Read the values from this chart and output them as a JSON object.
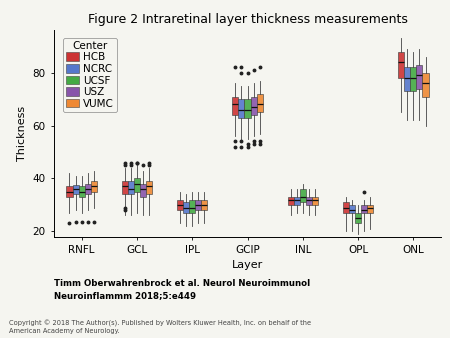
{
  "title": "Figure 2 Intraretinal layer thickness measurements",
  "xlabel": "Layer",
  "ylabel": "Thickness",
  "layers": [
    "RNFL",
    "GCL",
    "IPL",
    "GCIP",
    "INL",
    "OPL",
    "ONL"
  ],
  "centers": [
    "HCB",
    "NCRC",
    "UCSF",
    "USZ",
    "VUMC"
  ],
  "colors": [
    "#cc3333",
    "#5577cc",
    "#44aa44",
    "#8855aa",
    "#ee8833"
  ],
  "legend_title": "Center",
  "footnote1": "Timm Oberwahrenbrock et al. Neurol Neuroimmunol",
  "footnote2": "Neuroinflammm 2018;5:e449",
  "copyright": "Copyright © 2018 The Author(s). Published by Wolters Kluwer Health, Inc. on behalf of the\nAmerican Academy of Neurology.",
  "boxplot_data": {
    "RNFL": {
      "HCB": {
        "q1": 33,
        "median": 35,
        "q3": 37,
        "whislo": 27,
        "whishi": 42,
        "fliers": [
          23
        ]
      },
      "NCRC": {
        "q1": 34,
        "median": 36,
        "q3": 37.5,
        "whislo": 28,
        "whishi": 41,
        "fliers": [
          23.5
        ]
      },
      "UCSF": {
        "q1": 33,
        "median": 35,
        "q3": 37,
        "whislo": 27,
        "whishi": 41,
        "fliers": [
          23.5
        ]
      },
      "USZ": {
        "q1": 34,
        "median": 36,
        "q3": 38,
        "whislo": 28,
        "whishi": 42,
        "fliers": [
          23.5
        ]
      },
      "VUMC": {
        "q1": 35,
        "median": 37,
        "q3": 39,
        "whislo": 29,
        "whishi": 43,
        "fliers": [
          23.5
        ]
      }
    },
    "GCL": {
      "HCB": {
        "q1": 34,
        "median": 37,
        "q3": 39,
        "whislo": 26,
        "whishi": 44,
        "fliers": [
          45,
          46,
          29,
          28
        ]
      },
      "NCRC": {
        "q1": 34,
        "median": 36,
        "q3": 39,
        "whislo": 26,
        "whishi": 44,
        "fliers": [
          45,
          46
        ]
      },
      "UCSF": {
        "q1": 35,
        "median": 38,
        "q3": 40,
        "whislo": 27,
        "whishi": 45,
        "fliers": [
          46,
          46
        ]
      },
      "USZ": {
        "q1": 33,
        "median": 36,
        "q3": 38,
        "whislo": 26,
        "whishi": 43,
        "fliers": [
          45
        ]
      },
      "VUMC": {
        "q1": 34,
        "median": 37,
        "q3": 39,
        "whislo": 26,
        "whishi": 44,
        "fliers": [
          45,
          46
        ]
      }
    },
    "IPL": {
      "HCB": {
        "q1": 28,
        "median": 30,
        "q3": 32,
        "whislo": 23,
        "whishi": 35,
        "fliers": []
      },
      "NCRC": {
        "q1": 27,
        "median": 29,
        "q3": 31,
        "whislo": 22,
        "whishi": 34,
        "fliers": []
      },
      "UCSF": {
        "q1": 27,
        "median": 29,
        "q3": 32,
        "whislo": 22,
        "whishi": 35,
        "fliers": []
      },
      "USZ": {
        "q1": 28,
        "median": 30,
        "q3": 32,
        "whislo": 23,
        "whishi": 35,
        "fliers": []
      },
      "VUMC": {
        "q1": 28,
        "median": 30,
        "q3": 32,
        "whislo": 23,
        "whishi": 35,
        "fliers": []
      }
    },
    "GCIP": {
      "HCB": {
        "q1": 64,
        "median": 68,
        "q3": 71,
        "whislo": 56,
        "whishi": 76,
        "fliers": [
          52,
          54,
          82
        ]
      },
      "NCRC": {
        "q1": 63,
        "median": 66,
        "q3": 70,
        "whislo": 55,
        "whishi": 75,
        "fliers": [
          52,
          54,
          80,
          82
        ]
      },
      "UCSF": {
        "q1": 63,
        "median": 66,
        "q3": 70,
        "whislo": 55,
        "whishi": 75,
        "fliers": [
          52,
          53,
          80
        ]
      },
      "USZ": {
        "q1": 64,
        "median": 67,
        "q3": 71,
        "whislo": 56,
        "whishi": 76,
        "fliers": [
          53,
          54,
          81
        ]
      },
      "VUMC": {
        "q1": 65,
        "median": 68,
        "q3": 72,
        "whislo": 57,
        "whishi": 77,
        "fliers": [
          53,
          54,
          82
        ]
      }
    },
    "INL": {
      "HCB": {
        "q1": 30,
        "median": 32,
        "q3": 33,
        "whislo": 26,
        "whishi": 36,
        "fliers": []
      },
      "NCRC": {
        "q1": 30,
        "median": 32,
        "q3": 33,
        "whislo": 27,
        "whishi": 36,
        "fliers": []
      },
      "UCSF": {
        "q1": 31,
        "median": 33,
        "q3": 36,
        "whislo": 27,
        "whishi": 38,
        "fliers": []
      },
      "USZ": {
        "q1": 30,
        "median": 32,
        "q3": 33,
        "whislo": 26,
        "whishi": 36,
        "fliers": []
      },
      "VUMC": {
        "q1": 30,
        "median": 32,
        "q3": 33,
        "whislo": 26,
        "whishi": 36,
        "fliers": []
      }
    },
    "OPL": {
      "HCB": {
        "q1": 27,
        "median": 29,
        "q3": 31,
        "whislo": 20,
        "whishi": 33,
        "fliers": []
      },
      "NCRC": {
        "q1": 27,
        "median": 28,
        "q3": 30,
        "whislo": 20,
        "whishi": 32,
        "fliers": []
      },
      "UCSF": {
        "q1": 23,
        "median": 25,
        "q3": 27,
        "whislo": 19,
        "whishi": 30,
        "fliers": []
      },
      "USZ": {
        "q1": 27,
        "median": 28,
        "q3": 30,
        "whislo": 20,
        "whishi": 32,
        "fliers": [
          35
        ]
      },
      "VUMC": {
        "q1": 27,
        "median": 29,
        "q3": 30,
        "whislo": 21,
        "whishi": 33,
        "fliers": []
      }
    },
    "ONL": {
      "HCB": {
        "q1": 78,
        "median": 84,
        "q3": 88,
        "whislo": 65,
        "whishi": 93,
        "fliers": []
      },
      "NCRC": {
        "q1": 73,
        "median": 78,
        "q3": 82,
        "whislo": 62,
        "whishi": 89,
        "fliers": []
      },
      "UCSF": {
        "q1": 73,
        "median": 78,
        "q3": 82,
        "whislo": 62,
        "whishi": 88,
        "fliers": []
      },
      "USZ": {
        "q1": 74,
        "median": 79,
        "q3": 83,
        "whislo": 62,
        "whishi": 89,
        "fliers": []
      },
      "VUMC": {
        "q1": 71,
        "median": 76,
        "q3": 80,
        "whislo": 60,
        "whishi": 86,
        "fliers": []
      }
    }
  },
  "ylim": [
    18,
    96
  ],
  "yticks": [
    20,
    40,
    60,
    80
  ],
  "background_color": "#f5f5f0",
  "plot_bg_color": "#f5f5f0",
  "title_fontsize": 9,
  "axis_fontsize": 8,
  "tick_fontsize": 7.5,
  "legend_fontsize": 7.5
}
